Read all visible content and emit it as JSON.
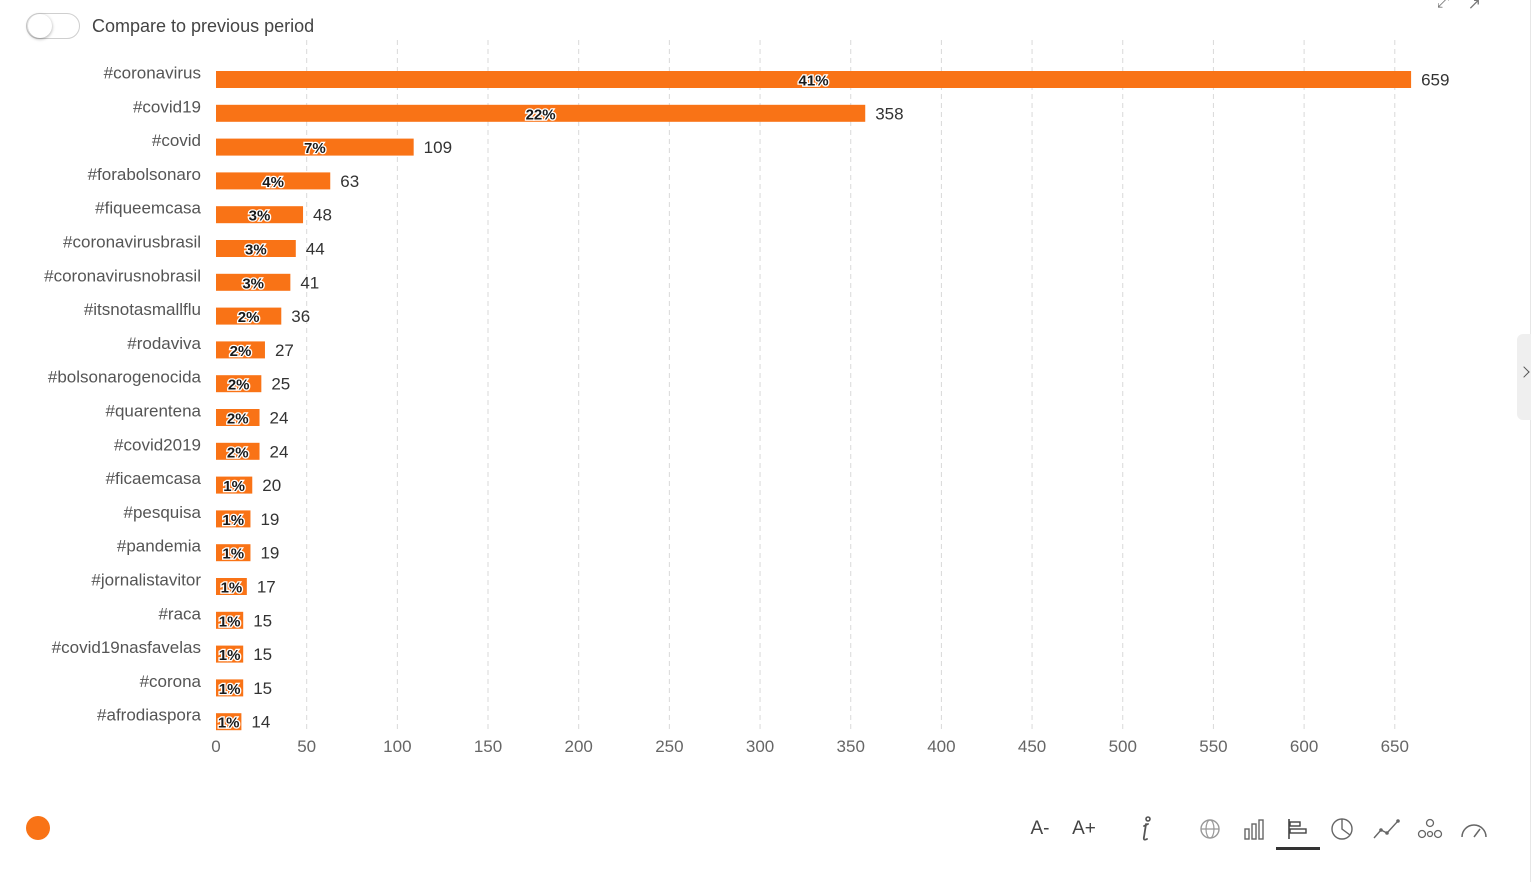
{
  "toggle": {
    "label": "Compare to previous period",
    "enabled": false
  },
  "toolbar": {
    "font_decrease": "A-",
    "font_increase": "A+"
  },
  "colors": {
    "bar": "#f97316",
    "accent": "#f97316",
    "grid": "#d9d9d9"
  },
  "icons": [
    "expand-icon",
    "external-link-icon",
    "info-icon",
    "globe-icon",
    "bar-chart-icon",
    "horizontal-bar-chart-icon",
    "pie-chart-icon",
    "line-chart-icon",
    "network-icon",
    "gauge-icon"
  ],
  "chart_data": {
    "type": "bar",
    "orientation": "horizontal",
    "categories": [
      "#coronavirus",
      "#covid19",
      "#covid",
      "#forabolsonaro",
      "#fiqueemcasa",
      "#coronavirusbrasil",
      "#coronavirusnobrasil",
      "#itsnotasmallflu",
      "#rodaviva",
      "#bolsonarogenocida",
      "#quarentena",
      "#covid2019",
      "#ficaemcasa",
      "#pesquisa",
      "#pandemia",
      "#jornalistavitor",
      "#raca",
      "#covid19nasfavelas",
      "#corona",
      "#afrodiaspora"
    ],
    "values": [
      659,
      358,
      109,
      63,
      48,
      44,
      41,
      36,
      27,
      25,
      24,
      24,
      20,
      19,
      19,
      17,
      15,
      15,
      15,
      14
    ],
    "percent_labels": [
      "41%",
      "22%",
      "7%",
      "4%",
      "3%",
      "3%",
      "3%",
      "2%",
      "2%",
      "2%",
      "2%",
      "2%",
      "1%",
      "1%",
      "1%",
      "1%",
      "1%",
      "1%",
      "1%",
      "1%"
    ],
    "x_ticks": [
      0,
      50,
      100,
      150,
      200,
      250,
      300,
      350,
      400,
      450,
      500,
      550,
      600,
      650
    ],
    "xlim": [
      0,
      690
    ],
    "grid": true
  }
}
